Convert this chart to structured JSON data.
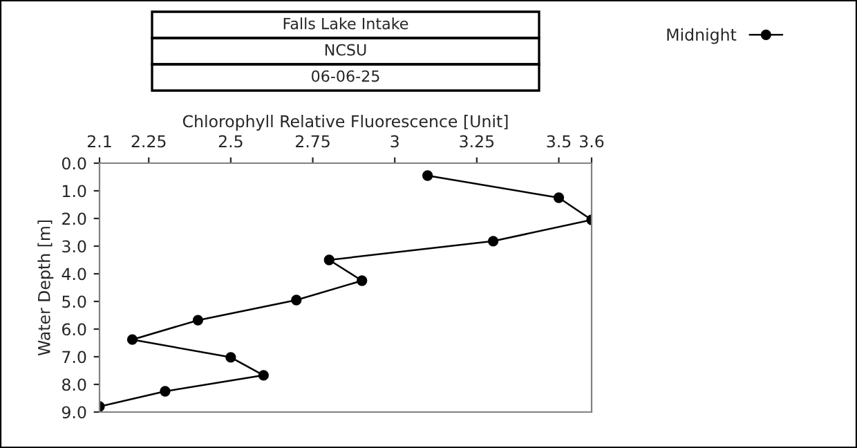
{
  "chart_data": {
    "type": "line",
    "title": "Falls Lake Intake",
    "subtitle": "NCSU",
    "annotations": [
      "06-06-25"
    ],
    "xlabel": "Chlorophyll Relative Fluorescence [Unit]",
    "ylabel": "Water Depth [m]",
    "x": [
      3.1,
      3.5,
      3.6,
      3.3,
      2.8,
      2.9,
      2.7,
      2.4,
      2.2,
      2.5,
      2.6,
      2.3,
      2.1
    ],
    "series": [
      {
        "name": "Midnight",
        "color": "#000000",
        "values": [
          0.45,
          1.25,
          2.05,
          2.82,
          3.5,
          4.25,
          4.95,
          5.68,
          6.38,
          7.02,
          7.67,
          8.25,
          8.8
        ]
      }
    ],
    "xlim": [
      2.1,
      3.6
    ],
    "xticks": [
      2.1,
      2.25,
      2.5,
      2.75,
      3,
      3.25,
      3.5,
      3.6
    ],
    "ylim": [
      9.0,
      0.0
    ],
    "yticks": [
      {
        "value": 0,
        "label": "0.0"
      },
      {
        "value": 1,
        "label": "1.0"
      },
      {
        "value": 2,
        "label": "2.0"
      },
      {
        "value": 3,
        "label": "3.0"
      },
      {
        "value": 4,
        "label": "4.0"
      },
      {
        "value": 5,
        "label": "5.0"
      },
      {
        "value": 6,
        "label": "6.0"
      },
      {
        "value": 7,
        "label": "7.0"
      },
      {
        "value": 8,
        "label": "8.0"
      },
      {
        "value": 9,
        "label": "9.0"
      }
    ],
    "marker": "circle",
    "line_style": "solid",
    "grid": false,
    "legend": "top right"
  }
}
